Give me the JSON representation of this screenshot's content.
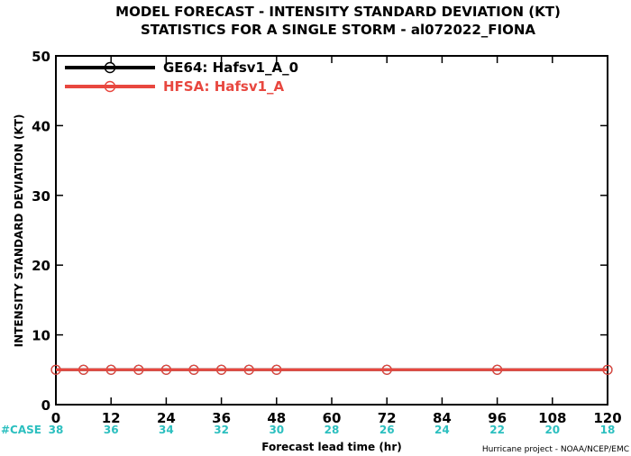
{
  "chart_data": {
    "type": "line",
    "title": "MODEL FORECAST - INTENSITY STANDARD DEVIATION (KT)",
    "subtitle": "STATISTICS FOR A SINGLE STORM - al072022_FIONA",
    "xlabel": "Forecast lead time (hr)",
    "ylabel": "INTENSITY STANDARD DEVIATION (KT)",
    "xlim": [
      0,
      120
    ],
    "ylim": [
      0,
      50
    ],
    "x_ticks": [
      0,
      12,
      24,
      36,
      48,
      60,
      72,
      84,
      96,
      108,
      120
    ],
    "x_tick_labels": [
      "0",
      "12",
      "24",
      "36",
      "48",
      "60",
      "72",
      "84",
      "96",
      "108",
      "120"
    ],
    "y_ticks": [
      0,
      10,
      20,
      30,
      40,
      50
    ],
    "y_tick_labels": [
      "0",
      "10",
      "20",
      "30",
      "40",
      "50"
    ],
    "grid": false,
    "legend_position": "top-left",
    "case_label": "#CASE",
    "cases": [
      {
        "x": 0,
        "label": "38"
      },
      {
        "x": 12,
        "label": "36"
      },
      {
        "x": 24,
        "label": "34"
      },
      {
        "x": 36,
        "label": "32"
      },
      {
        "x": 48,
        "label": "30"
      },
      {
        "x": 60,
        "label": "28"
      },
      {
        "x": 72,
        "label": "26"
      },
      {
        "x": 84,
        "label": "24"
      },
      {
        "x": 96,
        "label": "22"
      },
      {
        "x": 108,
        "label": "20"
      },
      {
        "x": 120,
        "label": "18"
      }
    ],
    "series": [
      {
        "name": "GE64: Hafsv1_A_0",
        "color": "#000000",
        "x": [
          0,
          6,
          12,
          18,
          24,
          30,
          36,
          42,
          48,
          72,
          96,
          120
        ],
        "y": [
          5,
          5,
          5,
          5,
          5,
          5,
          5,
          5,
          5,
          5,
          5,
          5
        ]
      },
      {
        "name": "HFSA: Hafsv1_A",
        "color": "#e8473f",
        "x": [
          0,
          6,
          12,
          18,
          24,
          30,
          36,
          42,
          48,
          72,
          96,
          120
        ],
        "y": [
          5,
          5,
          5,
          5,
          5,
          5,
          5,
          5,
          5,
          5,
          5,
          5
        ]
      }
    ],
    "credit": "Hurricane project - NOAA/NCEP/EMC"
  }
}
